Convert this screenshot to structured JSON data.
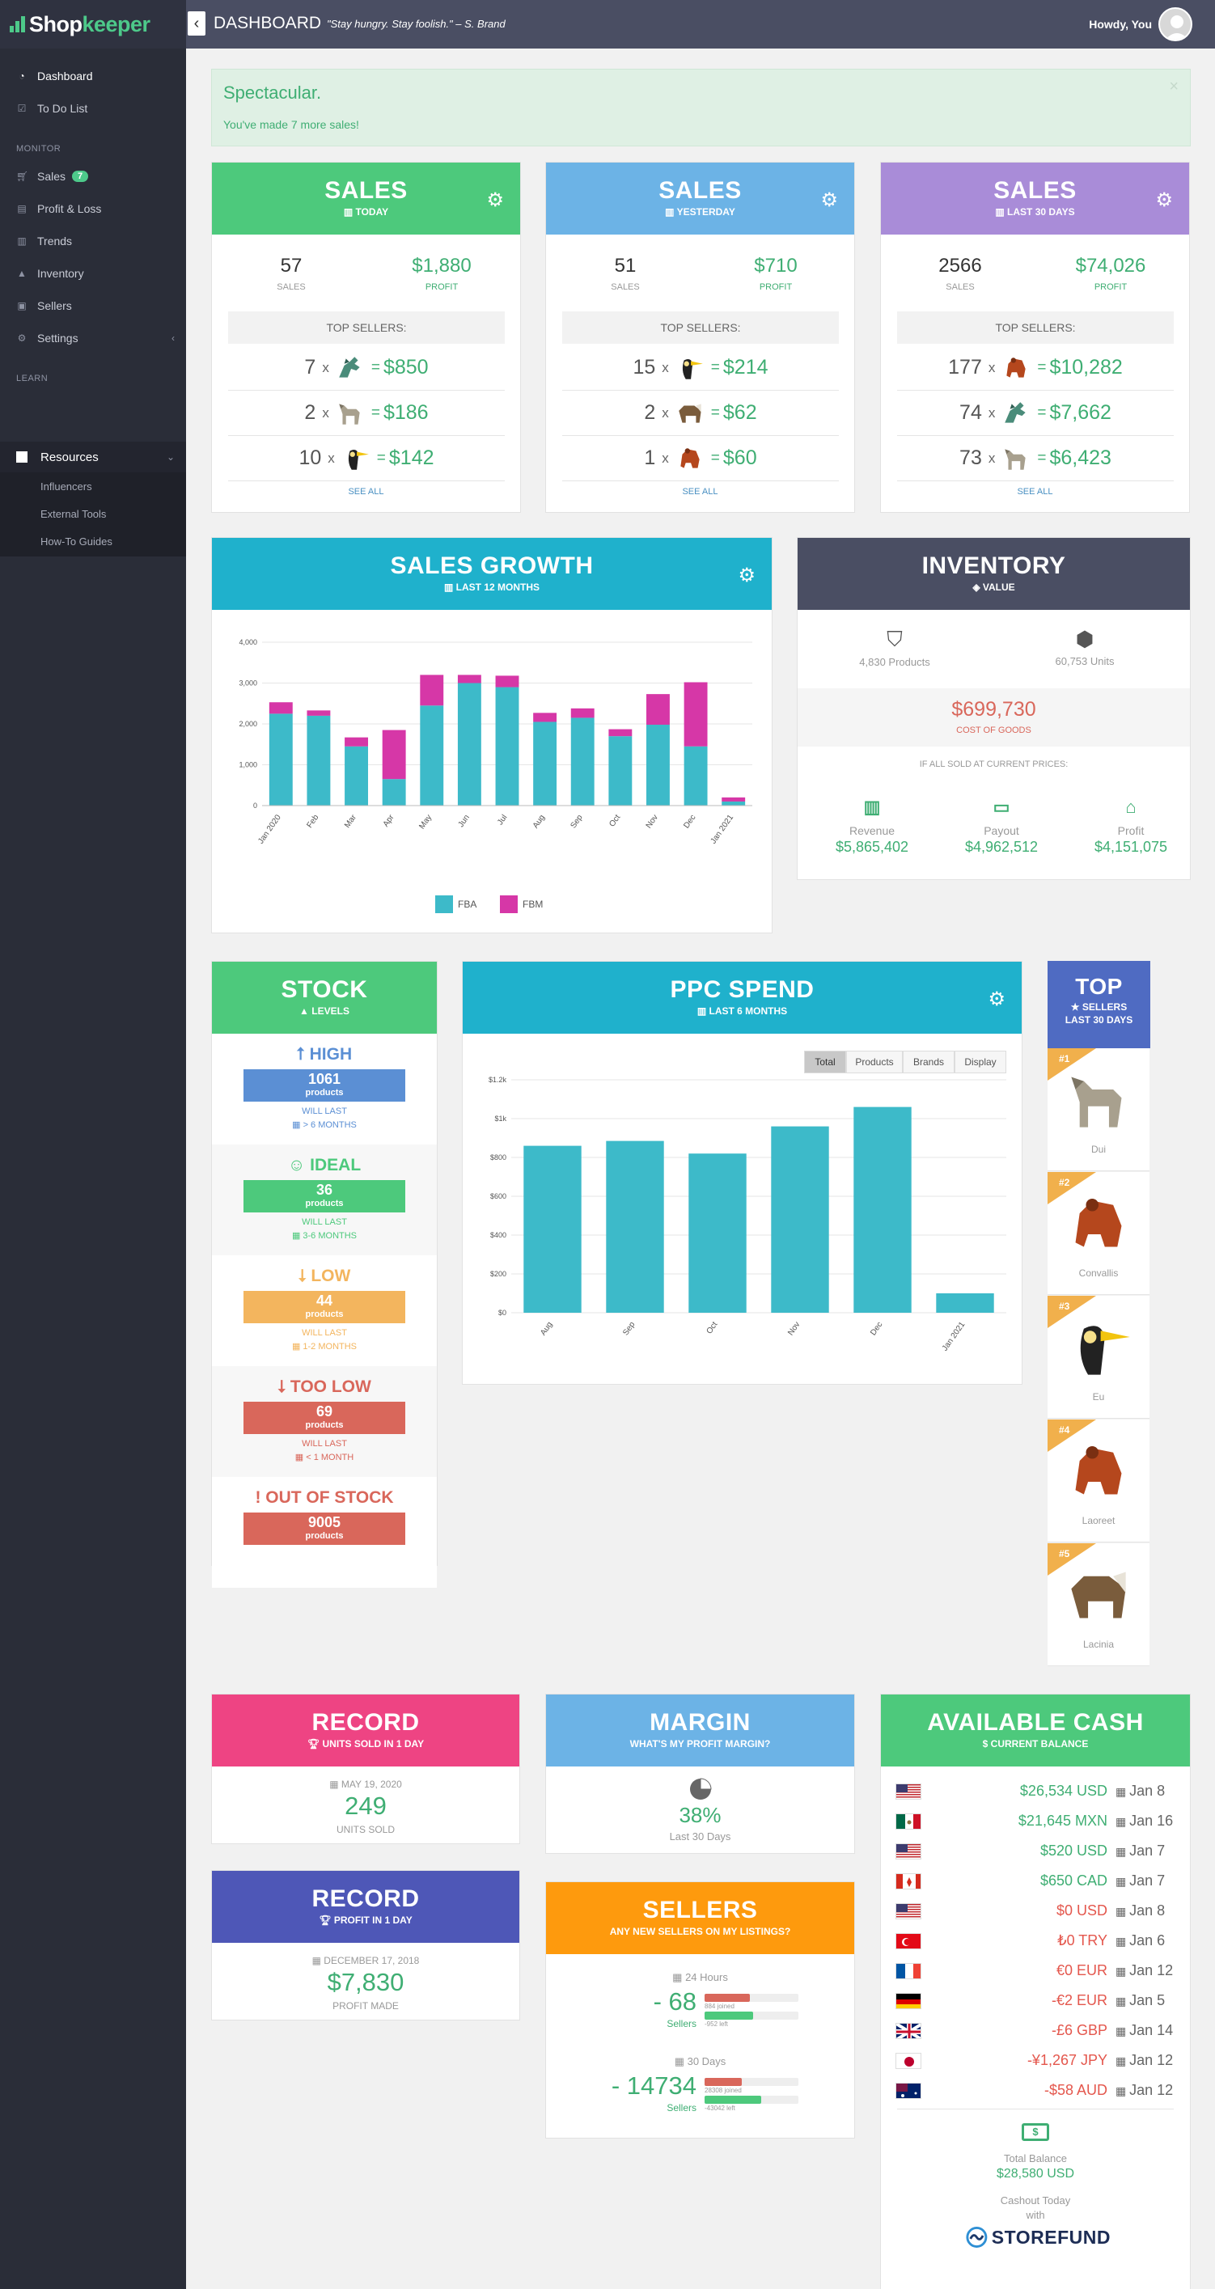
{
  "app": {
    "brand_a": "Shop",
    "brand_b": "keeper",
    "page_title": "DASHBOARD",
    "tagline": "\"Stay hungry. Stay foolish.\" – S. Brand",
    "greeting": "Howdy, You"
  },
  "sidebar": {
    "items": [
      {
        "label": "Dashboard"
      },
      {
        "label": "To Do List"
      },
      {
        "label": "Sales"
      },
      {
        "label": "Profit & Loss"
      },
      {
        "label": "Trends"
      },
      {
        "label": "Inventory"
      },
      {
        "label": "Sellers"
      },
      {
        "label": "Settings"
      },
      {
        "label": "Resources"
      }
    ],
    "section_monitor": "MONITOR",
    "section_learn": "LEARN",
    "sales_badge": "7",
    "resources_sub": [
      "Influencers",
      "External Tools",
      "How-To Guides"
    ]
  },
  "alert": {
    "title": "Spectacular.",
    "message": "You've made 7 more sales!",
    "close": "×"
  },
  "sales_cards": [
    {
      "title": "SALES",
      "subtitle": "TODAY",
      "sales": "57",
      "sales_label": "SALES",
      "profit": "$1,880",
      "profit_label": "PROFIT",
      "top_label": "TOP SELLERS:",
      "rows": [
        {
          "qty": "7",
          "amount": "$850"
        },
        {
          "qty": "2",
          "amount": "$186"
        },
        {
          "qty": "10",
          "amount": "$142"
        }
      ],
      "see_all": "SEE ALL"
    },
    {
      "title": "SALES",
      "subtitle": "YESTERDAY",
      "sales": "51",
      "sales_label": "SALES",
      "profit": "$710",
      "profit_label": "PROFIT",
      "top_label": "TOP SELLERS:",
      "rows": [
        {
          "qty": "15",
          "amount": "$214"
        },
        {
          "qty": "2",
          "amount": "$62"
        },
        {
          "qty": "1",
          "amount": "$60"
        }
      ],
      "see_all": "SEE ALL"
    },
    {
      "title": "SALES",
      "subtitle": "LAST 30 DAYS",
      "sales": "2566",
      "sales_label": "SALES",
      "profit": "$74,026",
      "profit_label": "PROFIT",
      "top_label": "TOP SELLERS:",
      "rows": [
        {
          "qty": "177",
          "amount": "$10,282"
        },
        {
          "qty": "74",
          "amount": "$7,662"
        },
        {
          "qty": "73",
          "amount": "$6,423"
        }
      ],
      "see_all": "SEE ALL"
    }
  ],
  "sales_growth": {
    "title": "SALES GROWTH",
    "subtitle": "LAST 12 MONTHS"
  },
  "inventory": {
    "title": "INVENTORY",
    "subtitle": "VALUE",
    "products": "4,830 Products",
    "units": "60,753 Units",
    "cost": "$699,730",
    "cost_label": "COST OF GOODS",
    "if_sold": "IF ALL SOLD AT CURRENT PRICES:",
    "metrics": [
      {
        "label": "Revenue",
        "value": "$5,865,402"
      },
      {
        "label": "Payout",
        "value": "$4,962,512"
      },
      {
        "label": "Profit",
        "value": "$4,151,075"
      }
    ]
  },
  "stock": {
    "title": "STOCK",
    "subtitle": "LEVELS",
    "levels": [
      {
        "name": "HIGH",
        "count": "1061",
        "unit": "products",
        "will_last": "WILL LAST",
        "duration": "> 6 MONTHS",
        "color": "#5b8fd4"
      },
      {
        "name": "IDEAL",
        "count": "36",
        "unit": "products",
        "will_last": "WILL LAST",
        "duration": "3-6 MONTHS",
        "color": "#4dc97c"
      },
      {
        "name": "LOW",
        "count": "44",
        "unit": "products",
        "will_last": "WILL LAST",
        "duration": "1-2 MONTHS",
        "color": "#f3b55e"
      },
      {
        "name": "TOO LOW",
        "count": "69",
        "unit": "products",
        "will_last": "WILL LAST",
        "duration": "< 1 MONTH",
        "color": "#d9675b"
      },
      {
        "name": "OUT OF STOCK",
        "count": "9005",
        "unit": "products",
        "color": "#d9675b"
      }
    ]
  },
  "ppc": {
    "title": "PPC SPEND",
    "subtitle": "LAST 6 MONTHS",
    "tabs": [
      "Total",
      "Products",
      "Brands",
      "Display"
    ]
  },
  "top_sellers": {
    "title": "TOP",
    "subtitle": "SELLERS",
    "subtitle2": "LAST 30 DAYS",
    "items": [
      {
        "rank": "#1",
        "name": "Dui"
      },
      {
        "rank": "#2",
        "name": "Convallis"
      },
      {
        "rank": "#3",
        "name": "Eu"
      },
      {
        "rank": "#4",
        "name": "Laoreet"
      },
      {
        "rank": "#5",
        "name": "Lacinia"
      }
    ]
  },
  "record_units": {
    "title": "RECORD",
    "subtitle": "UNITS SOLD IN 1 DAY",
    "date": "MAY 19, 2020",
    "value": "249",
    "label": "UNITS SOLD"
  },
  "record_profit": {
    "title": "RECORD",
    "subtitle": "PROFIT IN 1 DAY",
    "date": "DECEMBER 17, 2018",
    "value": "$7,830",
    "label": "PROFIT MADE"
  },
  "margin": {
    "title": "MARGIN",
    "subtitle": "WHAT'S MY PROFIT MARGIN?",
    "value": "38%",
    "label": "Last 30 Days"
  },
  "sellers": {
    "title": "SELLERS",
    "subtitle": "ANY NEW SELLERS ON MY LISTINGS?",
    "periods": [
      {
        "label": "24 Hours",
        "value": "- 68",
        "unit": "Sellers",
        "joined": "884 joined",
        "left": "-952 left",
        "joined_frac": 0.48,
        "left_frac": 0.52
      },
      {
        "label": "30 Days",
        "value": "- 14734",
        "unit": "Sellers",
        "joined": "28308 joined",
        "left": "-43042 left",
        "joined_frac": 0.4,
        "left_frac": 0.6
      }
    ]
  },
  "cash": {
    "title": "AVAILABLE CASH",
    "subtitle": "CURRENT BALANCE",
    "rows": [
      {
        "flag": "us",
        "amount": "$26,534 USD",
        "date": "Jan 8",
        "neg": false
      },
      {
        "flag": "mx",
        "amount": "$21,645 MXN",
        "date": "Jan 16",
        "neg": false
      },
      {
        "flag": "us",
        "amount": "$520 USD",
        "date": "Jan 7",
        "neg": false
      },
      {
        "flag": "ca",
        "amount": "$650 CAD",
        "date": "Jan 7",
        "neg": false
      },
      {
        "flag": "us",
        "amount": "$0 USD",
        "date": "Jan 8",
        "neg": true
      },
      {
        "flag": "tr",
        "amount": "₺0 TRY",
        "date": "Jan 6",
        "neg": true
      },
      {
        "flag": "fr",
        "amount": "€0 EUR",
        "date": "Jan 12",
        "neg": true
      },
      {
        "flag": "de",
        "amount": "-€2 EUR",
        "date": "Jan 5",
        "neg": true
      },
      {
        "flag": "gb",
        "amount": "-£6 GBP",
        "date": "Jan 14",
        "neg": true
      },
      {
        "flag": "jp",
        "amount": "-¥1,267 JPY",
        "date": "Jan 12",
        "neg": true
      },
      {
        "flag": "au",
        "amount": "-$58 AUD",
        "date": "Jan 12",
        "neg": true
      }
    ],
    "total_label": "Total Balance",
    "total": "$28,580 USD",
    "cashout": "Cashout Today",
    "with": "with",
    "partner": "STOREFUND"
  },
  "chart_data": [
    {
      "type": "bar",
      "stacked": true,
      "categories": [
        "Jan 2020",
        "Feb",
        "Mar",
        "Apr",
        "May",
        "Jun",
        "Jul",
        "Aug",
        "Sep",
        "Oct",
        "Nov",
        "Dec",
        "Jan 2021"
      ],
      "series": [
        {
          "name": "FBA",
          "color": "#3dbac9",
          "values": [
            2250,
            2200,
            1450,
            650,
            2450,
            3000,
            2900,
            2050,
            2150,
            1700,
            1980,
            1450,
            100
          ]
        },
        {
          "name": "FBM",
          "color": "#d637a7",
          "values": [
            280,
            130,
            220,
            1200,
            750,
            200,
            280,
            220,
            230,
            170,
            750,
            1570,
            100
          ]
        }
      ],
      "ylim": [
        0,
        4000
      ],
      "yticks": [
        "0",
        "1,000",
        "2,000",
        "3,000",
        "4,000"
      ],
      "legend": "bottom",
      "grid": true
    },
    {
      "type": "bar",
      "categories": [
        "Aug",
        "Sep",
        "Oct",
        "Nov",
        "Dec",
        "Jan 2021"
      ],
      "series": [
        {
          "color": "#3dbac9",
          "values": [
            860,
            885,
            820,
            960,
            1060,
            100
          ]
        }
      ],
      "ylim": [
        0,
        1200
      ],
      "yticks": [
        "$0",
        "$200",
        "$400",
        "$600",
        "$800",
        "$1k",
        "$1.2k"
      ],
      "grid": true
    }
  ]
}
